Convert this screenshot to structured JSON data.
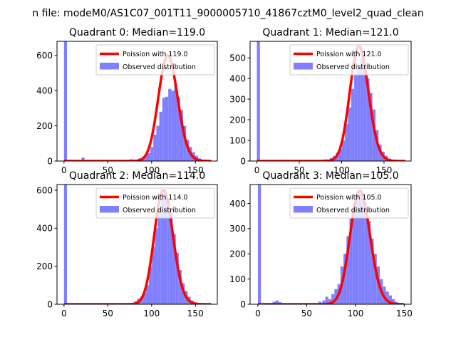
{
  "figure": {
    "suptitle": "n file: modeM0/AS1C07_001T11_9000005710_41867cztM0_level2_quad_clean"
  },
  "colors": {
    "poisson_line": "#ff0000",
    "histogram": "#8080ff",
    "axes": "#000000",
    "background": "#ffffff"
  },
  "chart_data": [
    {
      "type": "bar",
      "title": "Quadrant 0: Median=119.0",
      "xlabel": "",
      "ylabel": "",
      "xlim": [
        -8,
        175
      ],
      "ylim": [
        0,
        680
      ],
      "xticks": [
        0,
        50,
        100,
        150
      ],
      "yticks": [
        0,
        200,
        400,
        600
      ],
      "legend_position": "upper-right",
      "grid": false,
      "series": [
        {
          "name": "Poission with 119.0",
          "kind": "line",
          "lambda": 119.0,
          "scale": 600,
          "x_range": [
            0,
            168
          ]
        },
        {
          "name": "Observed distribution",
          "kind": "histogram",
          "bin_width": 3.4,
          "bins": [
            {
              "x": 0,
              "y": 680
            },
            {
              "x": 3.4,
              "y": 3
            },
            {
              "x": 10,
              "y": 3
            },
            {
              "x": 20,
              "y": 20
            },
            {
              "x": 30,
              "y": 3
            },
            {
              "x": 50,
              "y": 3
            },
            {
              "x": 65,
              "y": 5
            },
            {
              "x": 75,
              "y": 10
            },
            {
              "x": 85,
              "y": 15
            },
            {
              "x": 88.4,
              "y": 20
            },
            {
              "x": 91.8,
              "y": 35
            },
            {
              "x": 95.2,
              "y": 45
            },
            {
              "x": 98.6,
              "y": 80
            },
            {
              "x": 102,
              "y": 150
            },
            {
              "x": 105.4,
              "y": 200
            },
            {
              "x": 108.8,
              "y": 280
            },
            {
              "x": 112.2,
              "y": 360
            },
            {
              "x": 115.6,
              "y": 365
            },
            {
              "x": 119,
              "y": 410
            },
            {
              "x": 122.4,
              "y": 400
            },
            {
              "x": 125.8,
              "y": 440
            },
            {
              "x": 129.2,
              "y": 360
            },
            {
              "x": 132.6,
              "y": 290
            },
            {
              "x": 136,
              "y": 200
            },
            {
              "x": 139.4,
              "y": 120
            },
            {
              "x": 142.8,
              "y": 80
            },
            {
              "x": 146.2,
              "y": 50
            },
            {
              "x": 149.6,
              "y": 30
            },
            {
              "x": 153,
              "y": 15
            },
            {
              "x": 156.4,
              "y": 8
            },
            {
              "x": 159.8,
              "y": 4
            }
          ]
        }
      ]
    },
    {
      "type": "bar",
      "title": "Quadrant 1: Median=121.0",
      "xlabel": "",
      "ylabel": "",
      "xlim": [
        -8,
        182
      ],
      "ylim": [
        0,
        580
      ],
      "xticks": [
        0,
        50,
        100,
        150
      ],
      "yticks": [
        0,
        100,
        200,
        300,
        400,
        500
      ],
      "legend_position": "upper-right",
      "grid": false,
      "series": [
        {
          "name": "Poission with 121.0",
          "kind": "line",
          "lambda": 121.0,
          "scale": 555,
          "x_range": [
            0,
            175
          ]
        },
        {
          "name": "Observed distribution",
          "kind": "histogram",
          "bin_width": 3.6,
          "bins": [
            {
              "x": 0,
              "y": 580
            },
            {
              "x": 3.6,
              "y": 3
            },
            {
              "x": 15,
              "y": 3
            },
            {
              "x": 40,
              "y": 3
            },
            {
              "x": 65,
              "y": 3
            },
            {
              "x": 80,
              "y": 8
            },
            {
              "x": 86,
              "y": 15
            },
            {
              "x": 89.6,
              "y": 25
            },
            {
              "x": 93.2,
              "y": 40
            },
            {
              "x": 96.8,
              "y": 60
            },
            {
              "x": 100.4,
              "y": 100
            },
            {
              "x": 104,
              "y": 180
            },
            {
              "x": 107.6,
              "y": 260
            },
            {
              "x": 111.2,
              "y": 350
            },
            {
              "x": 114.8,
              "y": 420
            },
            {
              "x": 118.4,
              "y": 450
            },
            {
              "x": 122,
              "y": 500
            },
            {
              "x": 125.6,
              "y": 470
            },
            {
              "x": 129.2,
              "y": 400
            },
            {
              "x": 132.8,
              "y": 330
            },
            {
              "x": 136.4,
              "y": 250
            },
            {
              "x": 140,
              "y": 150
            },
            {
              "x": 143.6,
              "y": 80
            },
            {
              "x": 147.2,
              "y": 45
            },
            {
              "x": 150.8,
              "y": 25
            },
            {
              "x": 154.4,
              "y": 12
            },
            {
              "x": 158,
              "y": 6
            },
            {
              "x": 161.6,
              "y": 3
            }
          ]
        }
      ]
    },
    {
      "type": "bar",
      "title": "Quadrant 2: Median=114.0",
      "xlabel": "",
      "ylabel": "",
      "xlim": [
        -8,
        175
      ],
      "ylim": [
        0,
        630
      ],
      "xticks": [
        0,
        50,
        100,
        150
      ],
      "yticks": [
        0,
        200,
        400,
        600
      ],
      "legend_position": "upper-right",
      "grid": false,
      "series": [
        {
          "name": "Poission with 114.0",
          "kind": "line",
          "lambda": 114.0,
          "scale": 600,
          "x_range": [
            0,
            168
          ]
        },
        {
          "name": "Observed distribution",
          "kind": "histogram",
          "bin_width": 3.4,
          "bins": [
            {
              "x": 0,
              "y": 630
            },
            {
              "x": 3.4,
              "y": 3
            },
            {
              "x": 75,
              "y": 5
            },
            {
              "x": 80,
              "y": 15
            },
            {
              "x": 83.4,
              "y": 30
            },
            {
              "x": 86.8,
              "y": 40
            },
            {
              "x": 90.2,
              "y": 60
            },
            {
              "x": 93.6,
              "y": 100
            },
            {
              "x": 97,
              "y": 200
            },
            {
              "x": 100.4,
              "y": 300
            },
            {
              "x": 103.8,
              "y": 400
            },
            {
              "x": 107.2,
              "y": 500
            },
            {
              "x": 110.6,
              "y": 560
            },
            {
              "x": 114,
              "y": 590
            },
            {
              "x": 117.4,
              "y": 560
            },
            {
              "x": 120.8,
              "y": 500
            },
            {
              "x": 124.2,
              "y": 370
            },
            {
              "x": 127.6,
              "y": 270
            },
            {
              "x": 131,
              "y": 180
            },
            {
              "x": 134.4,
              "y": 110
            },
            {
              "x": 137.8,
              "y": 70
            },
            {
              "x": 141.2,
              "y": 40
            },
            {
              "x": 144.6,
              "y": 20
            },
            {
              "x": 148,
              "y": 10
            },
            {
              "x": 151.4,
              "y": 5
            }
          ]
        }
      ]
    },
    {
      "type": "bar",
      "title": "Quadrant 3: Median=105.0",
      "xlabel": "",
      "ylabel": "",
      "xlim": [
        -8,
        157
      ],
      "ylim": [
        0,
        475
      ],
      "xticks": [
        0,
        50,
        100,
        150
      ],
      "yticks": [
        0,
        100,
        200,
        300,
        400
      ],
      "legend_position": "upper-right",
      "grid": false,
      "series": [
        {
          "name": "Poission with 105.0",
          "kind": "line",
          "lambda": 105.0,
          "scale": 450,
          "x_range": [
            0,
            150
          ]
        },
        {
          "name": "Observed distribution",
          "kind": "histogram",
          "bin_width": 3.1,
          "bins": [
            {
              "x": 0,
              "y": 475
            },
            {
              "x": 3.1,
              "y": 3
            },
            {
              "x": 15,
              "y": 10
            },
            {
              "x": 18.1,
              "y": 15
            },
            {
              "x": 21.2,
              "y": 8
            },
            {
              "x": 40,
              "y": 3
            },
            {
              "x": 55,
              "y": 5
            },
            {
              "x": 62,
              "y": 10
            },
            {
              "x": 66,
              "y": 15
            },
            {
              "x": 69.1,
              "y": 30
            },
            {
              "x": 72.2,
              "y": 20
            },
            {
              "x": 75.3,
              "y": 40
            },
            {
              "x": 78.4,
              "y": 60
            },
            {
              "x": 81.5,
              "y": 80
            },
            {
              "x": 84.6,
              "y": 150
            },
            {
              "x": 87.7,
              "y": 200
            },
            {
              "x": 90.8,
              "y": 270
            },
            {
              "x": 93.9,
              "y": 340
            },
            {
              "x": 97,
              "y": 400
            },
            {
              "x": 100.1,
              "y": 420
            },
            {
              "x": 103.2,
              "y": 440
            },
            {
              "x": 106.3,
              "y": 420
            },
            {
              "x": 109.4,
              "y": 380
            },
            {
              "x": 112.5,
              "y": 330
            },
            {
              "x": 115.6,
              "y": 260
            },
            {
              "x": 118.7,
              "y": 200
            },
            {
              "x": 121.8,
              "y": 150
            },
            {
              "x": 124.9,
              "y": 100
            },
            {
              "x": 128,
              "y": 70
            },
            {
              "x": 131.1,
              "y": 50
            },
            {
              "x": 134.2,
              "y": 35
            },
            {
              "x": 137.3,
              "y": 20
            },
            {
              "x": 140.4,
              "y": 10
            },
            {
              "x": 143.5,
              "y": 5
            }
          ]
        }
      ]
    }
  ]
}
